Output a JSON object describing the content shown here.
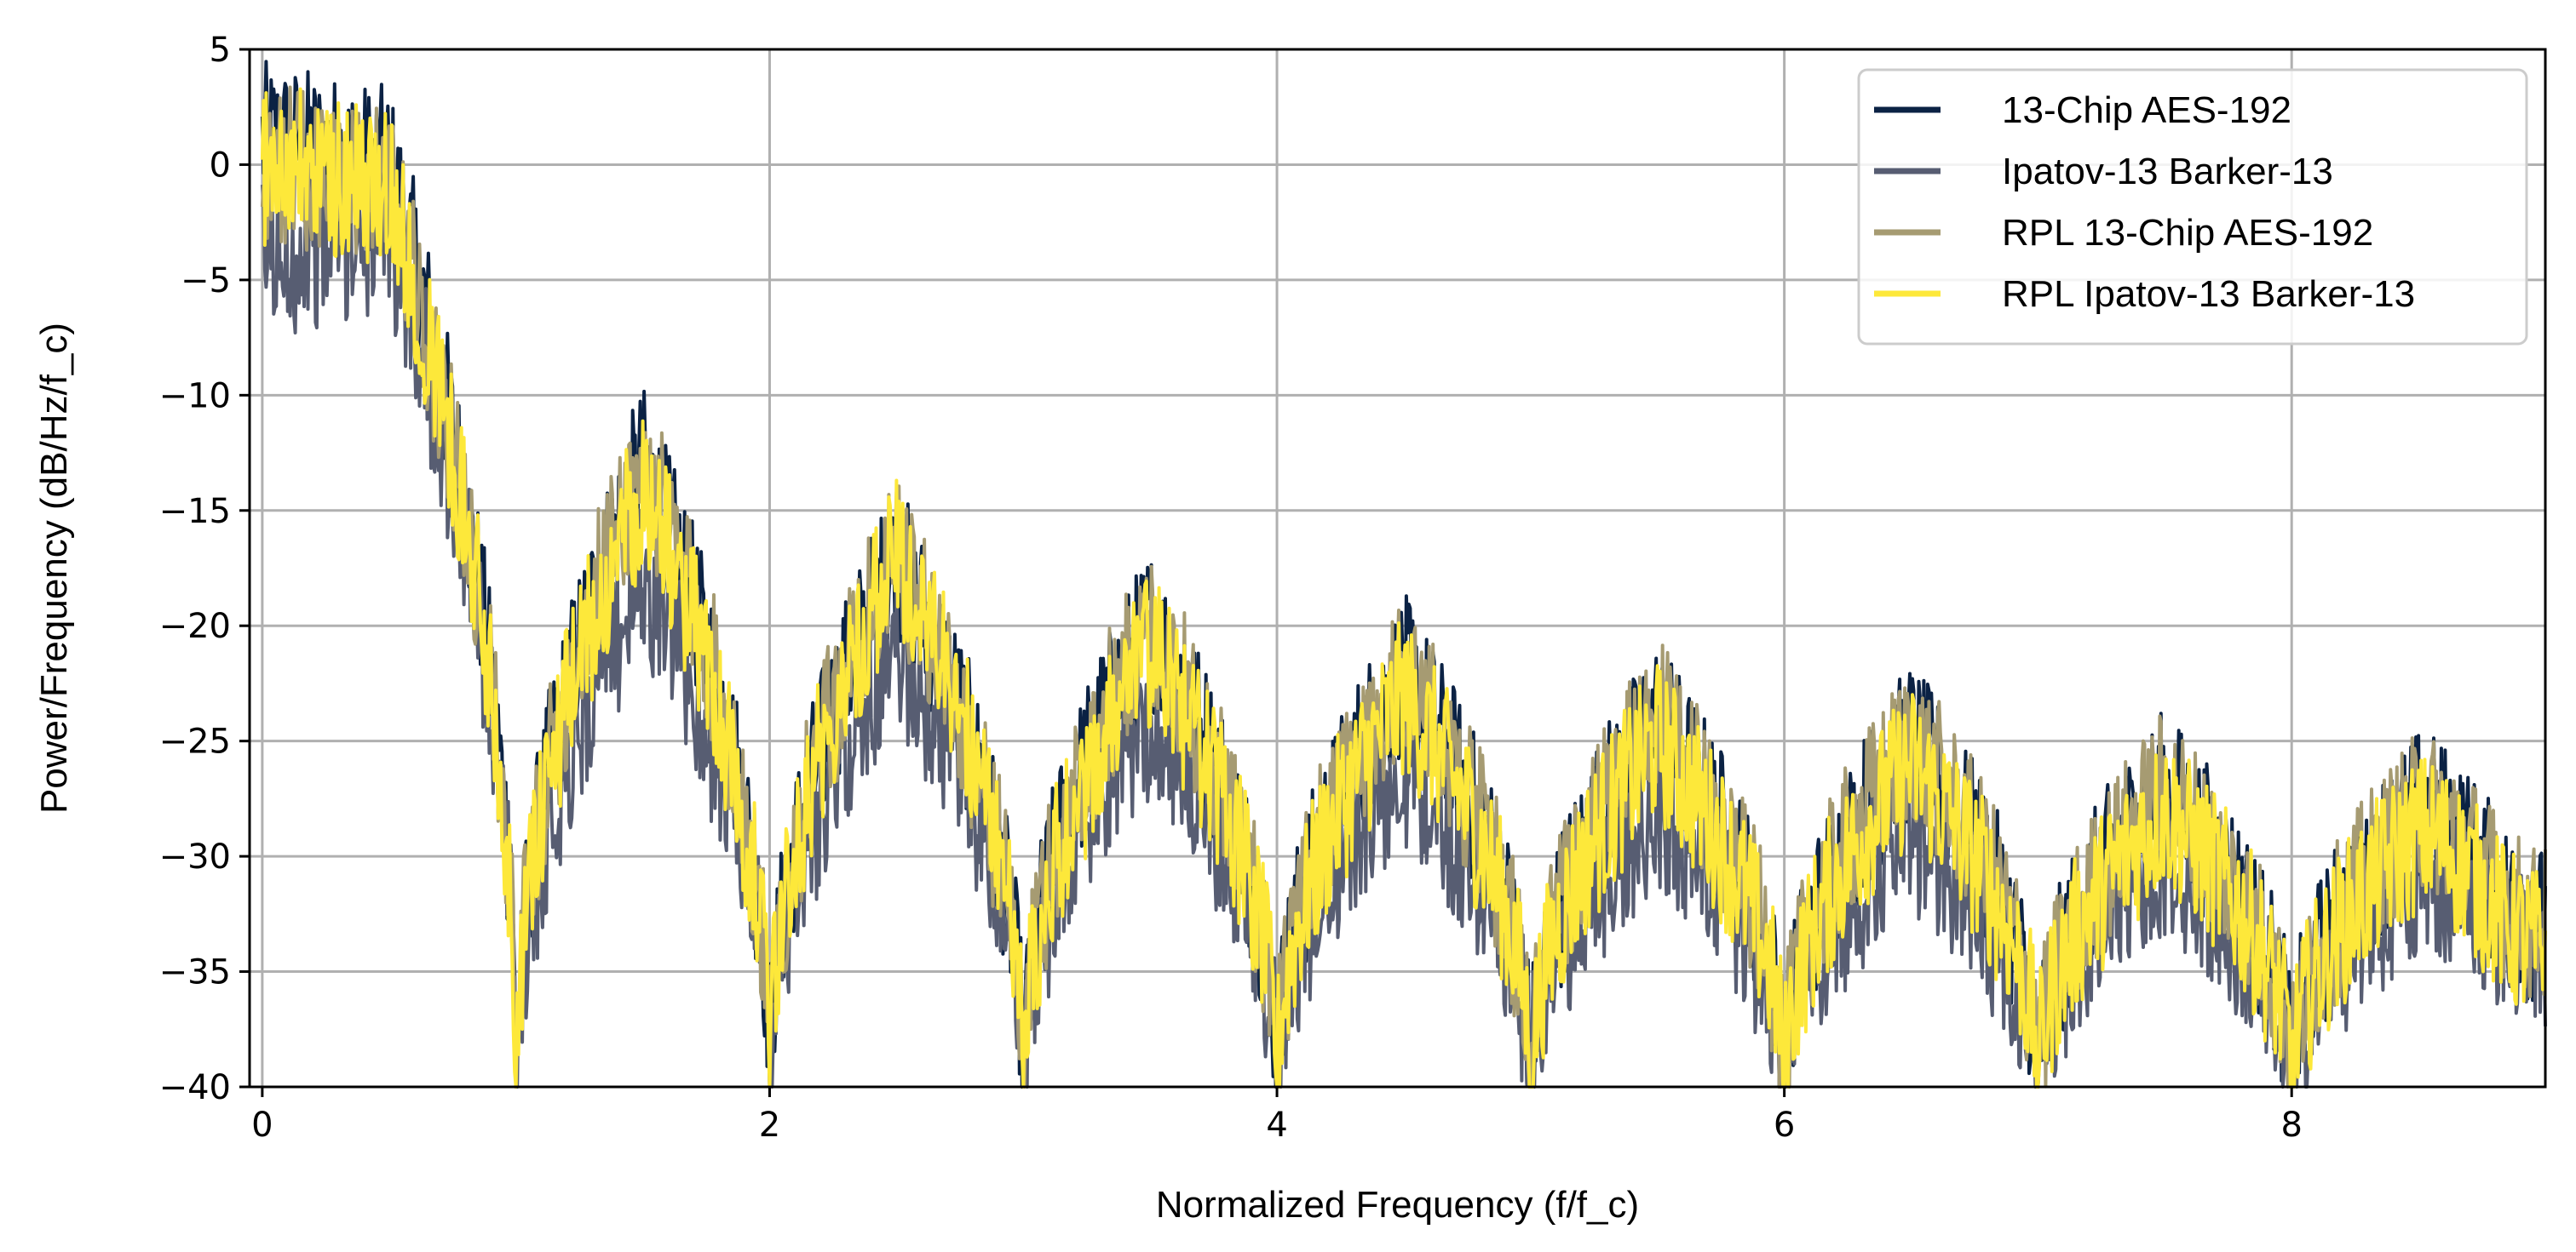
{
  "chart_data": {
    "type": "line",
    "title": "",
    "xlabel": "Normalized Frequency (f/f_c)",
    "ylabel": "Power/Frequency (dB/Hz/f_c)",
    "xlim": [
      -0.05,
      9.0
    ],
    "ylim": [
      -40,
      5
    ],
    "xticks": [
      0,
      2,
      4,
      6,
      8
    ],
    "yticks": [
      5,
      0,
      -5,
      -10,
      -15,
      -20,
      -25,
      -30,
      -35,
      -40
    ],
    "grid": true,
    "legend_position": "top-right",
    "noise_amplitude_db": 3.5,
    "series": [
      {
        "name": "13-Chip AES-192",
        "color": "#0b2244",
        "envelope": {
          "x": [
            0,
            0.5,
            1,
            1.5,
            2,
            2.5,
            3,
            3.5,
            4,
            4.5,
            5,
            5.5,
            6,
            6.5,
            7,
            7.5,
            8,
            8.5,
            9
          ],
          "y": [
            1,
            0,
            -40,
            -13,
            -40,
            -17,
            -40,
            -20,
            -40,
            -22,
            -40,
            -24,
            -40,
            -25,
            -40,
            -27,
            -40,
            -28,
            -33
          ]
        }
      },
      {
        "name": "Ipatov-13 Barker-13",
        "color": "#575d72",
        "envelope": {
          "x": [
            0,
            0.5,
            1,
            1.5,
            2,
            2.5,
            3,
            3.5,
            4,
            4.5,
            5,
            5.5,
            6,
            6.5,
            7,
            7.5,
            8,
            8.5,
            9
          ],
          "y": [
            -4,
            -3,
            -40,
            -18,
            -40,
            -21,
            -40,
            -24,
            -40,
            -26,
            -40,
            -28,
            -40,
            -29,
            -40,
            -30,
            -40,
            -31,
            -34
          ]
        }
      },
      {
        "name": "RPL 13-Chip AES-192",
        "color": "#a69b72",
        "envelope": {
          "x": [
            0,
            0.5,
            1,
            1.5,
            2,
            2.5,
            3,
            3.5,
            4,
            4.5,
            5,
            5.5,
            6,
            6.5,
            7,
            7.5,
            8,
            8.5,
            9
          ],
          "y": [
            0,
            -1,
            -40,
            -13,
            -40,
            -17,
            -40,
            -20,
            -40,
            -22,
            -40,
            -24,
            -40,
            -25,
            -40,
            -27,
            -40,
            -28,
            -33
          ]
        }
      },
      {
        "name": "RPL Ipatov-13 Barker-13",
        "color": "#fde83a",
        "envelope": {
          "x": [
            0,
            0.5,
            1,
            1.5,
            2,
            2.5,
            3,
            3.5,
            4,
            4.5,
            5,
            5.5,
            6,
            6.5,
            7,
            7.5,
            8,
            8.5,
            9
          ],
          "y": [
            0,
            -1,
            -40,
            -14,
            -40,
            -17,
            -40,
            -21,
            -40,
            -23,
            -40,
            -25,
            -40,
            -26,
            -40,
            -28,
            -40,
            -29,
            -34
          ]
        }
      }
    ]
  }
}
